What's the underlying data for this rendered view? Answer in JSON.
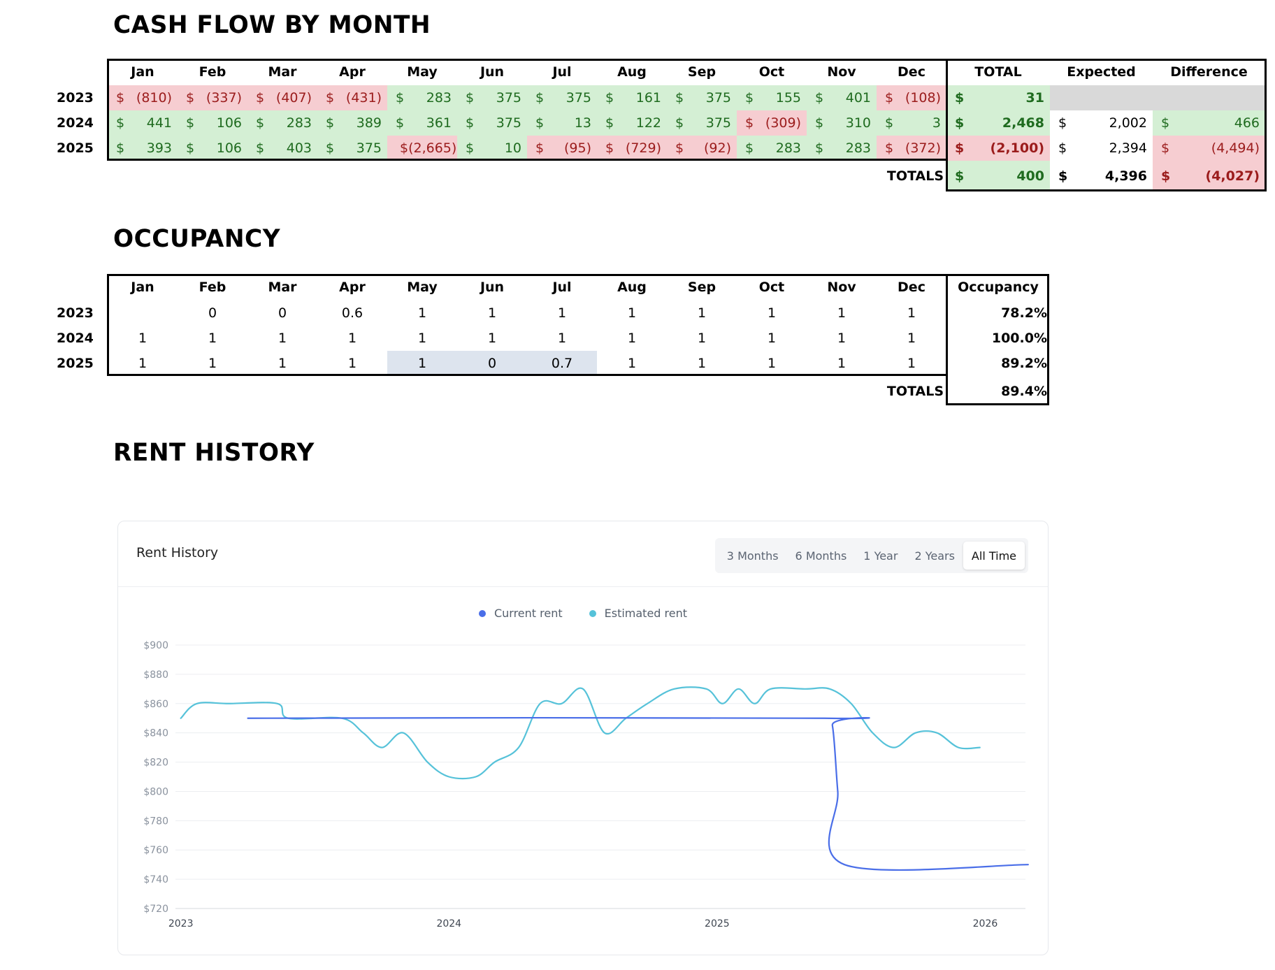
{
  "cashflow": {
    "title": "CASH FLOW BY MONTH",
    "headers": [
      "Jan",
      "Feb",
      "Mar",
      "Apr",
      "May",
      "Jun",
      "Jul",
      "Aug",
      "Sep",
      "Oct",
      "Nov",
      "Dec",
      "TOTAL",
      "Expected",
      "Difference"
    ],
    "rows": [
      {
        "year": "2023",
        "months": [
          {
            "cur": "$",
            "val": "(810)",
            "tone": "neg"
          },
          {
            "cur": "$",
            "val": "(337)",
            "tone": "neg"
          },
          {
            "cur": "$",
            "val": "(407)",
            "tone": "neg"
          },
          {
            "cur": "$",
            "val": "(431)",
            "tone": "neg"
          },
          {
            "cur": "$",
            "val": "283",
            "tone": "pos"
          },
          {
            "cur": "$",
            "val": "375",
            "tone": "pos"
          },
          {
            "cur": "$",
            "val": "375",
            "tone": "pos"
          },
          {
            "cur": "$",
            "val": "161",
            "tone": "pos"
          },
          {
            "cur": "$",
            "val": "375",
            "tone": "pos"
          },
          {
            "cur": "$",
            "val": "155",
            "tone": "pos"
          },
          {
            "cur": "$",
            "val": "401",
            "tone": "pos"
          },
          {
            "cur": "$",
            "val": "(108)",
            "tone": "neg"
          }
        ],
        "total": {
          "cur": "$",
          "val": "31",
          "tone": "pos"
        },
        "expected": {
          "cur": "",
          "val": "",
          "tone": "grey"
        },
        "difference": {
          "cur": "",
          "val": "",
          "tone": "grey"
        }
      },
      {
        "year": "2024",
        "months": [
          {
            "cur": "$",
            "val": "441",
            "tone": "pos"
          },
          {
            "cur": "$",
            "val": "106",
            "tone": "pos"
          },
          {
            "cur": "$",
            "val": "283",
            "tone": "pos"
          },
          {
            "cur": "$",
            "val": "389",
            "tone": "pos"
          },
          {
            "cur": "$",
            "val": "361",
            "tone": "pos"
          },
          {
            "cur": "$",
            "val": "375",
            "tone": "pos"
          },
          {
            "cur": "$",
            "val": "13",
            "tone": "pos"
          },
          {
            "cur": "$",
            "val": "122",
            "tone": "pos"
          },
          {
            "cur": "$",
            "val": "375",
            "tone": "pos"
          },
          {
            "cur": "$",
            "val": "(309)",
            "tone": "neg"
          },
          {
            "cur": "$",
            "val": "310",
            "tone": "pos"
          },
          {
            "cur": "$",
            "val": "3",
            "tone": "pos"
          }
        ],
        "total": {
          "cur": "$",
          "val": "2,468",
          "tone": "pos"
        },
        "expected": {
          "cur": "$",
          "val": "2,002",
          "tone": "neu"
        },
        "difference": {
          "cur": "$",
          "val": "466",
          "tone": "pos"
        }
      },
      {
        "year": "2025",
        "months": [
          {
            "cur": "$",
            "val": "393",
            "tone": "pos"
          },
          {
            "cur": "$",
            "val": "106",
            "tone": "pos"
          },
          {
            "cur": "$",
            "val": "403",
            "tone": "pos"
          },
          {
            "cur": "$",
            "val": "375",
            "tone": "pos"
          },
          {
            "cur": "",
            "val": "$(2,665)",
            "tone": "neg"
          },
          {
            "cur": "$",
            "val": "10",
            "tone": "pos"
          },
          {
            "cur": "$",
            "val": "(95)",
            "tone": "neg"
          },
          {
            "cur": "$",
            "val": "(729)",
            "tone": "neg"
          },
          {
            "cur": "$",
            "val": "(92)",
            "tone": "neg"
          },
          {
            "cur": "$",
            "val": "283",
            "tone": "pos"
          },
          {
            "cur": "$",
            "val": "283",
            "tone": "pos"
          },
          {
            "cur": "$",
            "val": "(372)",
            "tone": "neg"
          }
        ],
        "total": {
          "cur": "$",
          "val": "(2,100)",
          "tone": "neg"
        },
        "expected": {
          "cur": "$",
          "val": "2,394",
          "tone": "neu"
        },
        "difference": {
          "cur": "$",
          "val": "(4,494)",
          "tone": "neg"
        }
      }
    ],
    "totals_label": "TOTALS",
    "totals": {
      "total": {
        "cur": "$",
        "val": "400",
        "tone": "pos"
      },
      "expected": {
        "cur": "$",
        "val": "4,396",
        "tone": "neu"
      },
      "difference": {
        "cur": "$",
        "val": "(4,027)",
        "tone": "neg"
      }
    }
  },
  "occupancy": {
    "title": "OCCUPANCY",
    "headers": [
      "Jan",
      "Feb",
      "Mar",
      "Apr",
      "May",
      "Jun",
      "Jul",
      "Aug",
      "Sep",
      "Oct",
      "Nov",
      "Dec",
      "Occupancy"
    ],
    "rows": [
      {
        "year": "2023",
        "months": [
          "",
          "0",
          "0",
          "0.6",
          "1",
          "1",
          "1",
          "1",
          "1",
          "1",
          "1",
          "1"
        ],
        "occupancy": "78.2%",
        "highlight": []
      },
      {
        "year": "2024",
        "months": [
          "1",
          "1",
          "1",
          "1",
          "1",
          "1",
          "1",
          "1",
          "1",
          "1",
          "1",
          "1"
        ],
        "occupancy": "100.0%",
        "highlight": []
      },
      {
        "year": "2025",
        "months": [
          "1",
          "1",
          "1",
          "1",
          "1",
          "0",
          "0.7",
          "1",
          "1",
          "1",
          "1",
          "1"
        ],
        "occupancy": "89.2%",
        "highlight": [
          4,
          5,
          6
        ]
      }
    ],
    "totals_label": "TOTALS",
    "totals_value": "89.4%"
  },
  "rent_history": {
    "section_title": "RENT HISTORY",
    "card_title": "Rent History",
    "ranges": [
      "3 Months",
      "6 Months",
      "1 Year",
      "2 Years",
      "All Time"
    ],
    "active_range": "All Time",
    "colors": {
      "current": "#4a6ee8",
      "estimated": "#56c2d9"
    }
  },
  "chart_data": {
    "type": "line",
    "title": "Rent History",
    "xlabel": "",
    "ylabel": "",
    "ylim": [
      720,
      900
    ],
    "xlim": [
      2022.98,
      2026.15
    ],
    "yticks": [
      720,
      740,
      760,
      780,
      800,
      820,
      840,
      860,
      880,
      900
    ],
    "ytick_labels": [
      "$720",
      "$740",
      "$760",
      "$780",
      "$800",
      "$820",
      "$840",
      "$860",
      "$880",
      "$900"
    ],
    "xticks": [
      2023,
      2024,
      2025,
      2026
    ],
    "xtick_labels": [
      "2023",
      "2024",
      "2025",
      "2026"
    ],
    "legend": [
      "Current rent",
      "Estimated rent"
    ],
    "series": [
      {
        "name": "Current rent",
        "color": "#4a6ee8",
        "points": [
          [
            2023.25,
            850
          ],
          [
            2025.4,
            850
          ],
          [
            2025.43,
            845
          ],
          [
            2025.45,
            800
          ],
          [
            2025.475,
            750
          ],
          [
            2026.16,
            750
          ]
        ]
      },
      {
        "name": "Estimated rent",
        "color": "#56c2d9",
        "points": [
          [
            2023.0,
            850
          ],
          [
            2023.06,
            860
          ],
          [
            2023.18,
            860
          ],
          [
            2023.36,
            860
          ],
          [
            2023.4,
            850
          ],
          [
            2023.6,
            850
          ],
          [
            2023.68,
            840
          ],
          [
            2023.75,
            830
          ],
          [
            2023.83,
            840
          ],
          [
            2023.92,
            820
          ],
          [
            2024.0,
            810
          ],
          [
            2024.1,
            810
          ],
          [
            2024.17,
            820
          ],
          [
            2024.26,
            830
          ],
          [
            2024.34,
            860
          ],
          [
            2024.42,
            860
          ],
          [
            2024.5,
            870
          ],
          [
            2024.58,
            840
          ],
          [
            2024.66,
            850
          ],
          [
            2024.74,
            860
          ],
          [
            2024.84,
            870
          ],
          [
            2024.96,
            870
          ],
          [
            2025.02,
            860
          ],
          [
            2025.08,
            870
          ],
          [
            2025.14,
            860
          ],
          [
            2025.2,
            870
          ],
          [
            2025.33,
            870
          ],
          [
            2025.42,
            870
          ],
          [
            2025.5,
            860
          ],
          [
            2025.58,
            840
          ],
          [
            2025.66,
            830
          ],
          [
            2025.74,
            840
          ],
          [
            2025.82,
            840
          ],
          [
            2025.9,
            830
          ],
          [
            2025.98,
            830
          ]
        ]
      }
    ]
  }
}
